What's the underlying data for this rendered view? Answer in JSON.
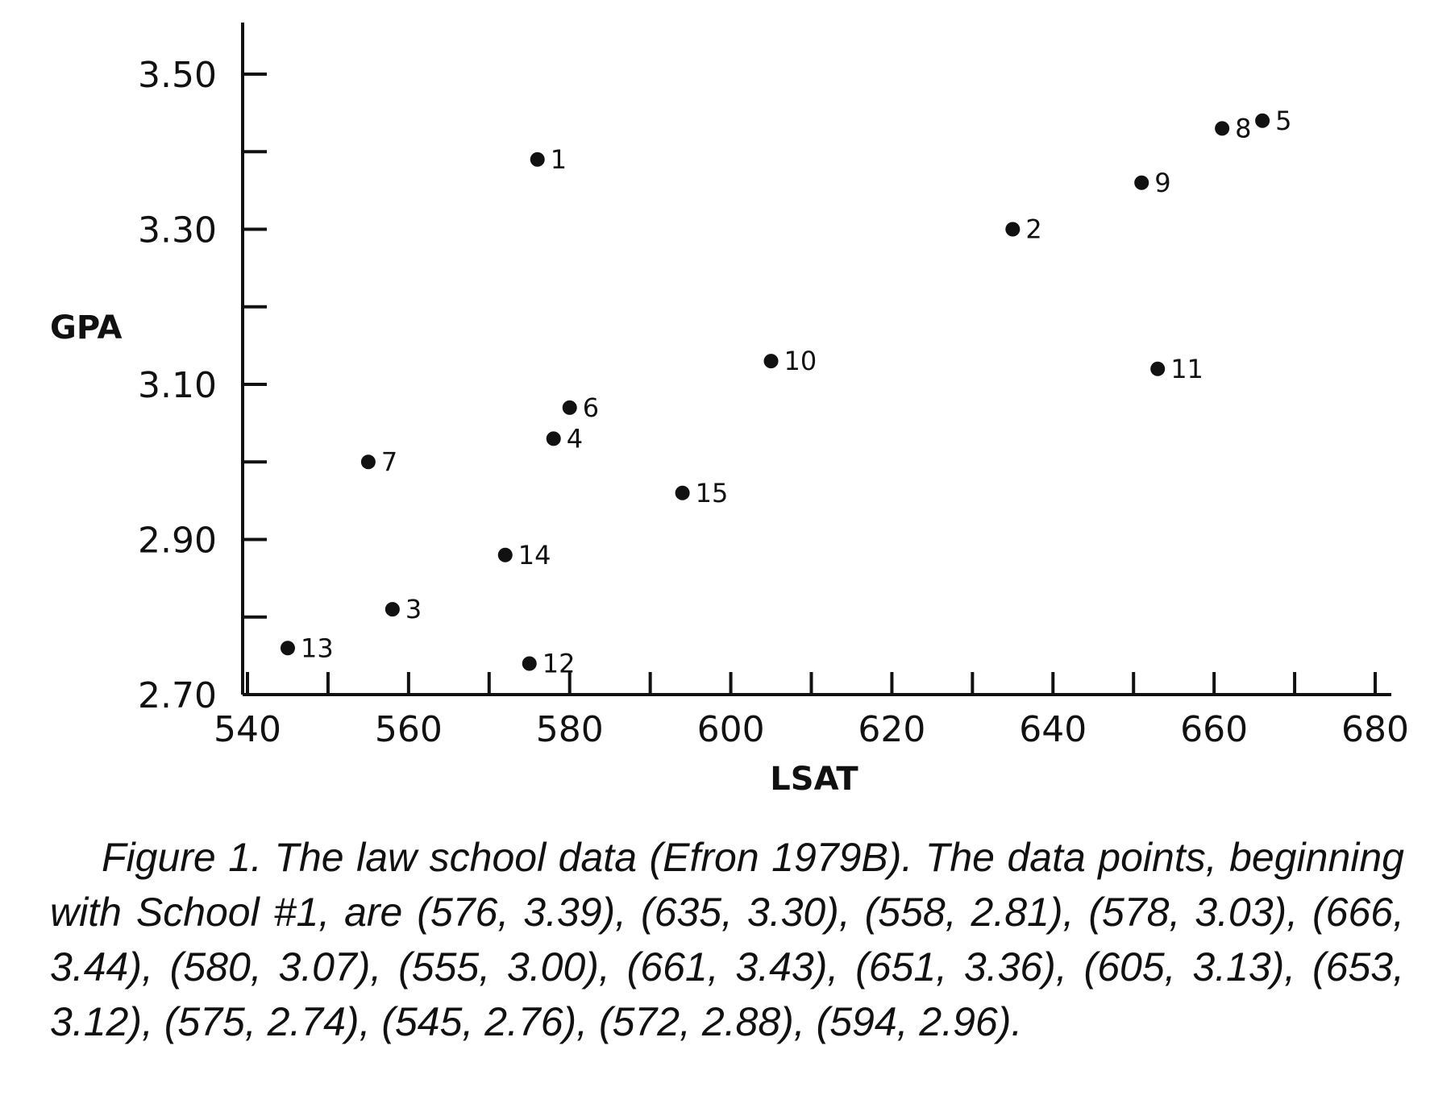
{
  "chart_data": {
    "type": "scatter",
    "title": "",
    "xlabel": "LSAT",
    "ylabel": "GPA",
    "xlim": [
      540,
      680
    ],
    "ylim": [
      2.7,
      3.5
    ],
    "x_ticks": [
      540,
      560,
      580,
      600,
      620,
      640,
      660,
      680
    ],
    "x_tick_labels": [
      "540",
      "560",
      "580",
      "600",
      "620",
      "640",
      "660",
      "680"
    ],
    "x_minor_ticks": [
      550,
      570,
      590,
      610,
      630,
      650,
      670
    ],
    "y_ticks": [
      2.7,
      2.9,
      3.1,
      3.3,
      3.5
    ],
    "y_tick_labels": [
      "2.70",
      "2.90",
      "3.10",
      "3.30",
      "3.50"
    ],
    "y_minor_ticks": [
      2.8,
      3.0,
      3.2,
      3.4
    ],
    "grid": false,
    "points": [
      {
        "label": "1",
        "x": 576,
        "y": 3.39
      },
      {
        "label": "2",
        "x": 635,
        "y": 3.3
      },
      {
        "label": "3",
        "x": 558,
        "y": 2.81
      },
      {
        "label": "4",
        "x": 578,
        "y": 3.03
      },
      {
        "label": "5",
        "x": 666,
        "y": 3.44
      },
      {
        "label": "6",
        "x": 580,
        "y": 3.07
      },
      {
        "label": "7",
        "x": 555,
        "y": 3.0
      },
      {
        "label": "8",
        "x": 661,
        "y": 3.43
      },
      {
        "label": "9",
        "x": 651,
        "y": 3.36
      },
      {
        "label": "10",
        "x": 605,
        "y": 3.13
      },
      {
        "label": "11",
        "x": 653,
        "y": 3.12
      },
      {
        "label": "12",
        "x": 575,
        "y": 2.74
      },
      {
        "label": "13",
        "x": 545,
        "y": 2.76
      },
      {
        "label": "14",
        "x": 572,
        "y": 2.88
      },
      {
        "label": "15",
        "x": 594,
        "y": 2.96
      }
    ]
  },
  "caption": "Figure 1. The law school data (Efron 1979B). The data points, beginning with School #1, are (576, 3.39), (635, 3.30), (558, 2.81), (578, 3.03), (666, 3.44), (580, 3.07), (555, 3.00), (661, 3.43), (651, 3.36), (605, 3.13), (653, 3.12), (575, 2.74), (545, 2.76), (572, 2.88), (594, 2.96)."
}
